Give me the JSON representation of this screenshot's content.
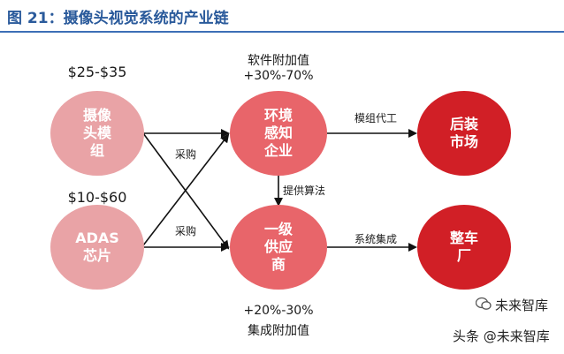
{
  "title": "图 21：摄像头视觉系统的产业链",
  "nodes": {
    "camera_module": {
      "lines": [
        "摄像",
        "头模",
        "组"
      ],
      "color": "#e9a3a6"
    },
    "adas_chip": {
      "lines": [
        "ADAS",
        "芯片"
      ],
      "color": "#e9a3a6"
    },
    "perception": {
      "lines": [
        "环境",
        "感知",
        "企业"
      ],
      "color": "#e8656a"
    },
    "tier1": {
      "lines": [
        "一级",
        "供应",
        "商"
      ],
      "color": "#e8656a"
    },
    "aftermarket": {
      "lines": [
        "后装",
        "市场"
      ],
      "color": "#d11f26"
    },
    "oem": {
      "lines": [
        "整车",
        "厂"
      ],
      "color": "#d11f26"
    }
  },
  "prices": {
    "camera_module": "$25-$35",
    "adas_chip": "$10-$60"
  },
  "value_add": {
    "software_title": "软件附加值",
    "software_range": "+30%-70%",
    "integration_range": "+20%-30%",
    "integration_title": "集成附加值"
  },
  "edges": {
    "purchase_top": "采购",
    "purchase_bottom": "采购",
    "module_oem": "模组代工",
    "algorithm": "提供算法",
    "integration": "系统集成"
  },
  "watermark": {
    "top": "未来智库",
    "bottom": "头条 @未来智库"
  }
}
